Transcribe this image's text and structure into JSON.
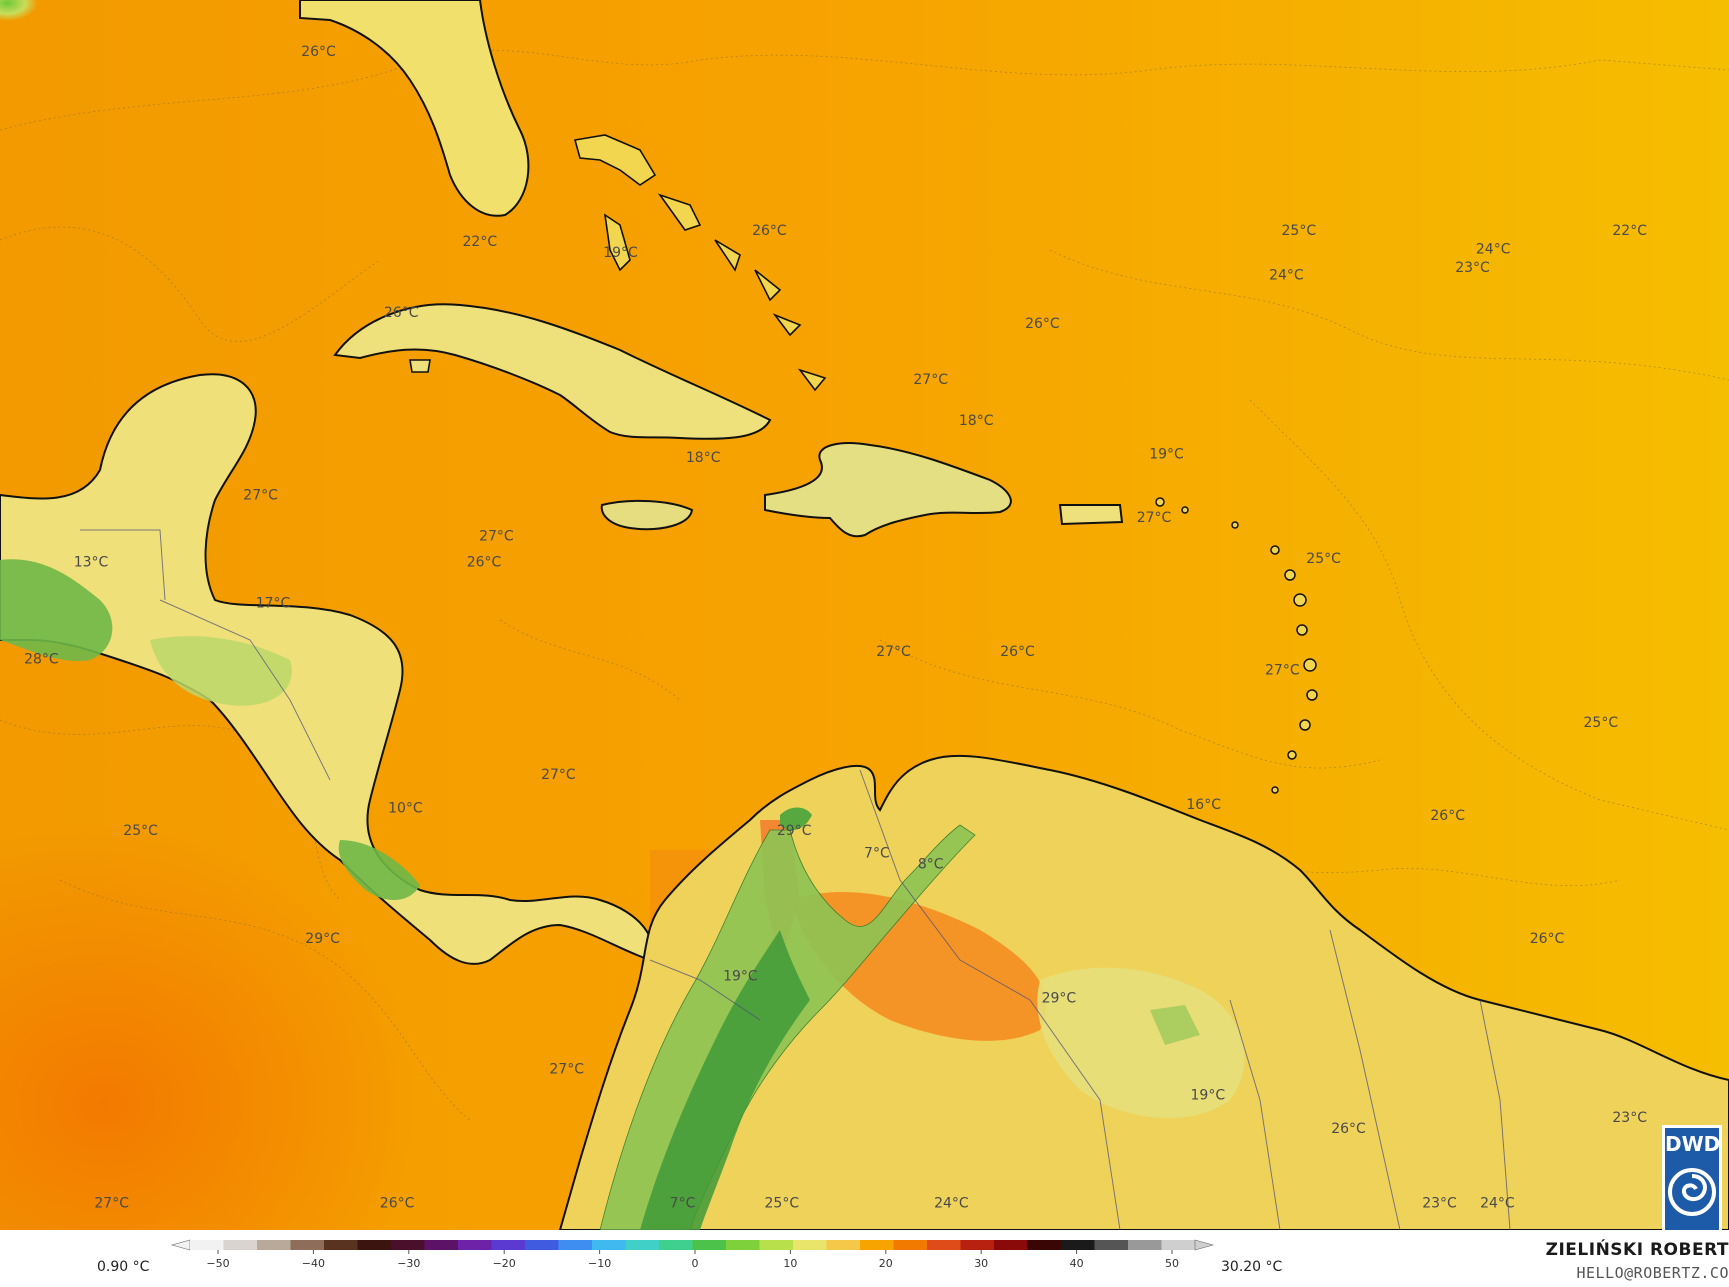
{
  "colors": {
    "sea_caribbean": "#f7a300",
    "sea_atlantic": "#f5b400",
    "sea_warm_pacific": "#f68400",
    "land_warm": "#f4d34e",
    "land_mild": "#eee47a",
    "land_cool": "#b5d36c",
    "highland": "#57a83e",
    "coast": "#111111",
    "border": "#4b4b7a",
    "badge": "#1d5aa8"
  },
  "labels": [
    {
      "text": "26°C",
      "lon": -86.1,
      "lat": 28.6
    },
    {
      "text": "22°C",
      "lon": -82.2,
      "lat": 23.5
    },
    {
      "text": "19°C",
      "lon": -78.8,
      "lat": 23.2
    },
    {
      "text": "26°C",
      "lon": -75.2,
      "lat": 23.8
    },
    {
      "text": "26°C",
      "lon": -84.1,
      "lat": 21.6
    },
    {
      "text": "26°C",
      "lon": -68.6,
      "lat": 21.3
    },
    {
      "text": "27°C",
      "lon": -71.3,
      "lat": 19.8
    },
    {
      "text": "18°C",
      "lon": -70.2,
      "lat": 18.7
    },
    {
      "text": "18°C",
      "lon": -76.8,
      "lat": 17.7
    },
    {
      "text": "19°C",
      "lon": -65.6,
      "lat": 17.8
    },
    {
      "text": "25°C",
      "lon": -62.4,
      "lat": 23.8
    },
    {
      "text": "24°C",
      "lon": -62.7,
      "lat": 22.6
    },
    {
      "text": "24°C",
      "lon": -57.7,
      "lat": 23.3
    },
    {
      "text": "23°C",
      "lon": -58.2,
      "lat": 22.8
    },
    {
      "text": "22°C",
      "lon": -54.4,
      "lat": 23.8
    },
    {
      "text": "27°C",
      "lon": -87.5,
      "lat": 16.7
    },
    {
      "text": "27°C",
      "lon": -81.8,
      "lat": 15.6
    },
    {
      "text": "26°C",
      "lon": -82.1,
      "lat": 14.9
    },
    {
      "text": "27°C",
      "lon": -65.9,
      "lat": 16.1
    },
    {
      "text": "25°C",
      "lon": -61.8,
      "lat": 15.0
    },
    {
      "text": "13°C",
      "lon": -91.6,
      "lat": 14.9
    },
    {
      "text": "17°C",
      "lon": -87.2,
      "lat": 13.8
    },
    {
      "text": "28°C",
      "lon": -92.8,
      "lat": 12.3
    },
    {
      "text": "27°C",
      "lon": -72.2,
      "lat": 12.5
    },
    {
      "text": "26°C",
      "lon": -69.2,
      "lat": 12.5
    },
    {
      "text": "27°C",
      "lon": -62.8,
      "lat": 12.0
    },
    {
      "text": "25°C",
      "lon": -55.1,
      "lat": 10.6
    },
    {
      "text": "27°C",
      "lon": -80.3,
      "lat": 9.2
    },
    {
      "text": "10°C",
      "lon": -84.0,
      "lat": 8.3
    },
    {
      "text": "25°C",
      "lon": -90.4,
      "lat": 7.7
    },
    {
      "text": "29°C",
      "lon": -74.6,
      "lat": 7.7
    },
    {
      "text": "7°C",
      "lon": -72.6,
      "lat": 7.1
    },
    {
      "text": "8°C",
      "lon": -71.3,
      "lat": 6.8
    },
    {
      "text": "16°C",
      "lon": -64.7,
      "lat": 8.4
    },
    {
      "text": "26°C",
      "lon": -58.8,
      "lat": 8.1
    },
    {
      "text": "29°C",
      "lon": -86.0,
      "lat": 4.8
    },
    {
      "text": "19°C",
      "lon": -75.9,
      "lat": 3.8
    },
    {
      "text": "29°C",
      "lon": -68.2,
      "lat": 3.2
    },
    {
      "text": "26°C",
      "lon": -56.4,
      "lat": 4.8
    },
    {
      "text": "27°C",
      "lon": -80.1,
      "lat": 1.3
    },
    {
      "text": "19°C",
      "lon": -64.6,
      "lat": 0.6
    },
    {
      "text": "26°C",
      "lon": -61.2,
      "lat": -0.3
    },
    {
      "text": "23°C",
      "lon": -54.4,
      "lat": 0.0
    },
    {
      "text": "27°C",
      "lon": -91.1,
      "lat": -2.3
    },
    {
      "text": "26°C",
      "lon": -84.2,
      "lat": -2.3
    },
    {
      "text": "7°C",
      "lon": -77.3,
      "lat": -2.3
    },
    {
      "text": "25°C",
      "lon": -74.9,
      "lat": -2.3
    },
    {
      "text": "24°C",
      "lon": -70.8,
      "lat": -2.3
    },
    {
      "text": "23°C",
      "lon": -59.0,
      "lat": -2.3
    },
    {
      "text": "24°C",
      "lon": -57.6,
      "lat": -2.3
    }
  ],
  "colorbar": {
    "min_label": "0.90 °C",
    "max_label": "30.20 °C",
    "ticks": [
      "−50",
      "−40",
      "−30",
      "−20",
      "−10",
      "0",
      "10",
      "20",
      "30",
      "40",
      "50"
    ],
    "colors": [
      "#f2f2f2",
      "#d9d4cf",
      "#b9a99a",
      "#8e6e5a",
      "#5a3320",
      "#3b1410",
      "#4a0f2a",
      "#5c1266",
      "#6d22a8",
      "#5a3ad0",
      "#3f5ce0",
      "#3d8ef0",
      "#3fb9f0",
      "#40d0c8",
      "#3fcf8e",
      "#4cc24a",
      "#7ed13a",
      "#b8e04a",
      "#e8e56a",
      "#f6c84a",
      "#f7a300",
      "#f27a00",
      "#e04b1a",
      "#b82010",
      "#8a0a0a",
      "#3a0505",
      "#1a1a1a",
      "#555555",
      "#999999",
      "#cfcfcf"
    ]
  },
  "author": "ZIELIŃSKI ROBERT",
  "email": "HELLO@ROBERTZ.CO",
  "badge": "DWD"
}
